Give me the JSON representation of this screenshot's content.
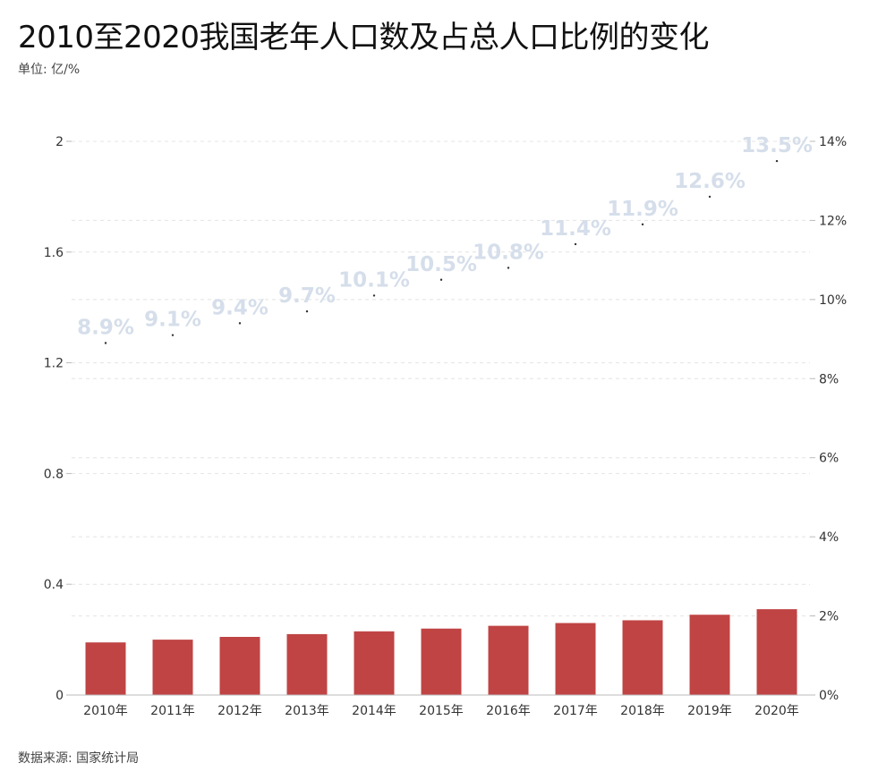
{
  "title": "2010至2020我国老年人口数及占总人口比例的变化",
  "unit_note": "单位: 亿/%",
  "source": "数据来源: 国家统计局",
  "chart_data": {
    "type": "bar",
    "categories": [
      "2010年",
      "2011年",
      "2012年",
      "2013年",
      "2014年",
      "2015年",
      "2016年",
      "2017年",
      "2018年",
      "2019年",
      "2020年"
    ],
    "series": [
      {
        "type": "bar",
        "axis": "left",
        "color": "#c04444",
        "values": [
          0.19,
          0.2,
          0.21,
          0.22,
          0.23,
          0.24,
          0.25,
          0.26,
          0.27,
          0.29,
          0.31
        ]
      },
      {
        "type": "scatter",
        "axis": "right",
        "color": "#333333",
        "label_color": "#d5deea",
        "values": [
          8.9,
          9.1,
          9.4,
          9.7,
          10.1,
          10.5,
          10.8,
          11.4,
          11.9,
          12.6,
          13.5
        ],
        "data_labels": [
          "8.9%",
          "9.1%",
          "9.4%",
          "9.7%",
          "10.1%",
          "10.5%",
          "10.8%",
          "11.4%",
          "11.9%",
          "12.6%",
          "13.5%"
        ]
      }
    ],
    "y_left": {
      "ylim": [
        0,
        2
      ],
      "ticks": [
        0,
        0.4,
        0.8,
        1.2,
        1.6,
        2
      ],
      "tick_labels": [
        "0",
        "0.4",
        "0.8",
        "1.2",
        "1.6",
        "2"
      ]
    },
    "y_right": {
      "ylim": [
        0,
        14
      ],
      "ticks": [
        0,
        2,
        4,
        6,
        8,
        10,
        12,
        14
      ],
      "tick_labels": [
        "0%",
        "2%",
        "4%",
        "6%",
        "8%",
        "10%",
        "12%",
        "14%"
      ]
    },
    "grid": true,
    "grid_style": "dashed"
  }
}
